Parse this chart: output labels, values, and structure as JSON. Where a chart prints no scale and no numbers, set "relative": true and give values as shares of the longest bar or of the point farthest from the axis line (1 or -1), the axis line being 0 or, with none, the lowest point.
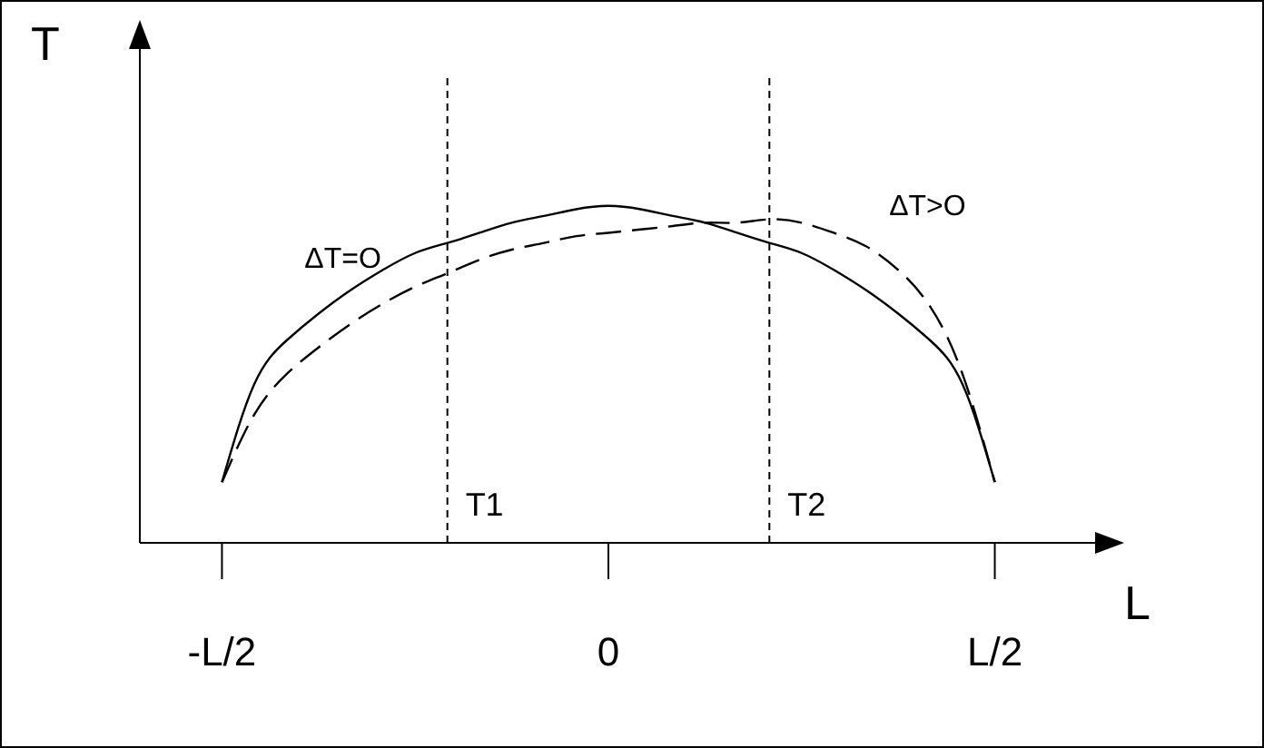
{
  "chart_data": {
    "type": "line",
    "relative": true,
    "xlabel": "L",
    "ylabel": "T",
    "categories": [
      "-L/2",
      null,
      null,
      null,
      null,
      null,
      null,
      null,
      null,
      null,
      null,
      null,
      "0",
      null,
      null,
      null,
      null,
      null,
      null,
      null,
      null,
      null,
      null,
      null,
      "L/2"
    ],
    "series": [
      {
        "name": "ΔT=O",
        "color": "#000000",
        "line_style": "solid",
        "values": [
          0.18,
          0.47,
          0.6,
          0.68,
          0.75,
          0.81,
          0.86,
          0.89,
          0.92,
          0.95,
          0.97,
          0.99,
          1,
          0.99,
          0.97,
          0.95,
          0.92,
          0.89,
          0.86,
          0.81,
          0.75,
          0.68,
          0.6,
          0.47,
          0.18
        ]
      },
      {
        "name": "ΔT>O",
        "color": "#000000",
        "line_style": "dashed",
        "values": [
          0.18,
          0.38,
          0.5,
          0.58,
          0.65,
          0.71,
          0.76,
          0.8,
          0.84,
          0.87,
          0.89,
          0.91,
          0.92,
          0.93,
          0.94,
          0.95,
          0.95,
          0.96,
          0.95,
          0.92,
          0.88,
          0.81,
          0.7,
          0.5,
          0.18
        ]
      }
    ],
    "annotations": [
      "T1",
      "T2"
    ]
  }
}
